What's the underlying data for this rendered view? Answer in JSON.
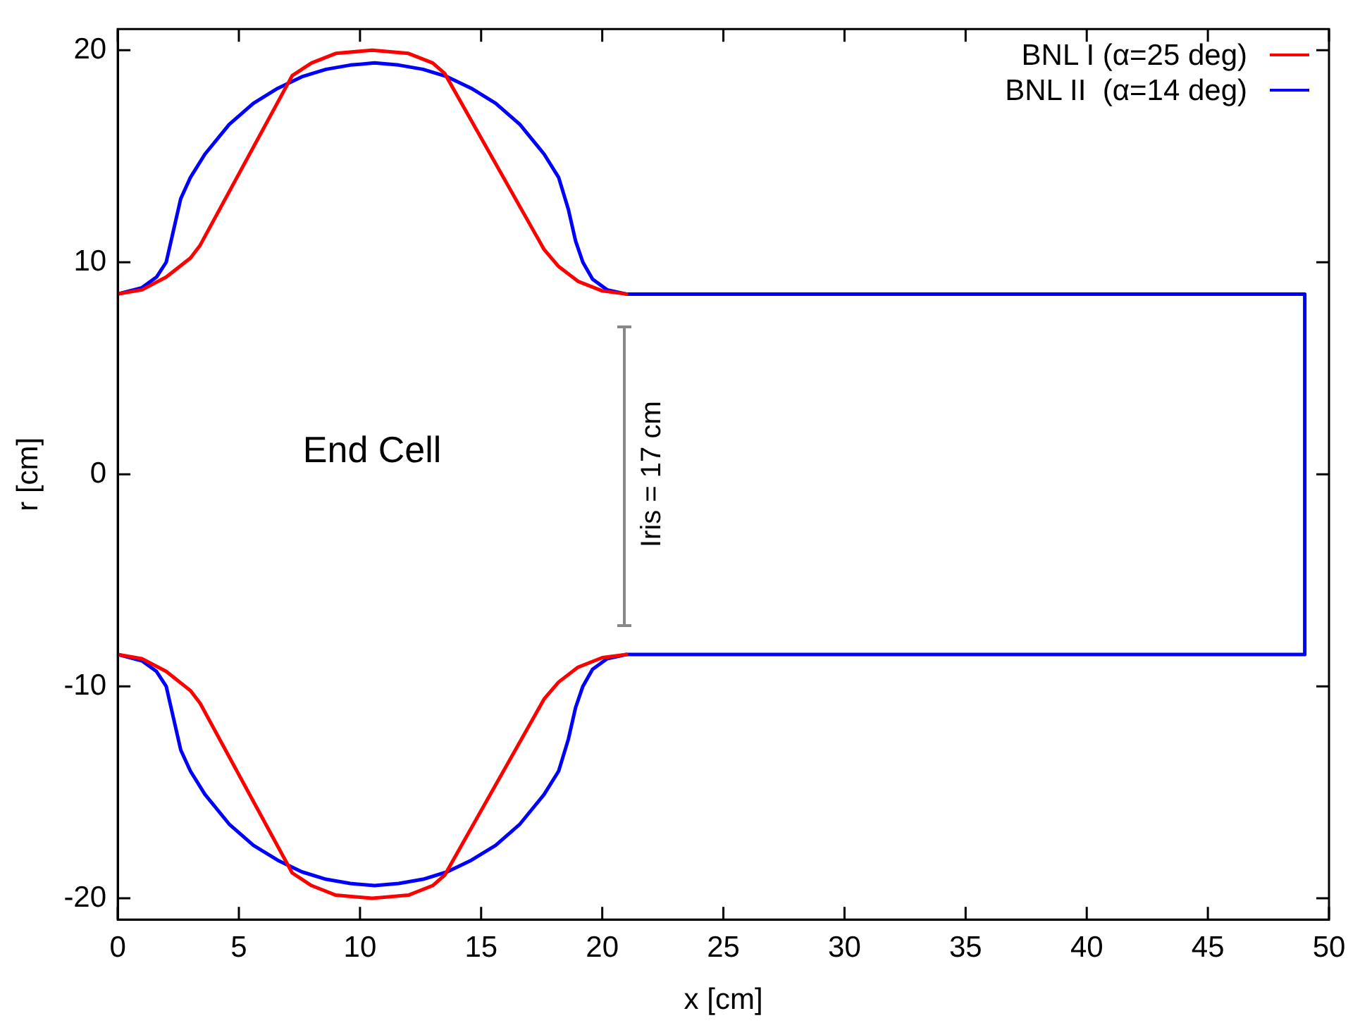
{
  "chart_data": {
    "type": "line",
    "xlabel": "x [cm]",
    "ylabel": "r [cm]",
    "xlim": [
      0,
      50
    ],
    "ylim": [
      -21,
      21
    ],
    "xticks": [
      0,
      5,
      10,
      15,
      20,
      25,
      30,
      35,
      40,
      45,
      50
    ],
    "yticks": [
      -20,
      -10,
      0,
      10,
      20
    ],
    "grid": false,
    "legend": "top right",
    "marker": "none",
    "line_style": "solid",
    "annotations": [
      "End Cell",
      "Iris = 17 cm"
    ],
    "series": [
      {
        "name": "BNL I (α=25 deg)",
        "color": "#ff0000",
        "x": [
          0,
          1,
          2,
          3,
          3.4,
          7.2,
          8,
          9,
          10.5,
          12,
          13,
          13.5,
          17.6,
          18.2,
          19,
          20,
          21,
          null,
          0,
          1,
          2,
          3,
          3.4,
          7.2,
          8,
          9,
          10.5,
          12,
          13,
          13.5,
          17.6,
          18.2,
          19,
          20,
          21
        ],
        "values": [
          8.5,
          8.7,
          9.3,
          10.2,
          10.8,
          18.8,
          19.4,
          19.85,
          20,
          19.85,
          19.4,
          18.9,
          10.6,
          9.8,
          9.1,
          8.65,
          8.5,
          null,
          -8.5,
          -8.7,
          -9.3,
          -10.2,
          -10.8,
          -18.8,
          -19.4,
          -19.85,
          -20,
          -19.85,
          -19.4,
          -18.9,
          -10.6,
          -9.8,
          -9.1,
          -8.65,
          -8.5
        ]
      },
      {
        "name": "BNL II  (α=14 deg)",
        "color": "#0000ff",
        "x": [
          0,
          1,
          1.6,
          2,
          2.3,
          2.6,
          3,
          3.6,
          4.6,
          5.6,
          6.6,
          7.6,
          8.6,
          9.6,
          10.6,
          11.6,
          12.6,
          13.6,
          14.6,
          15.6,
          16.6,
          17.6,
          18.2,
          18.6,
          18.9,
          19.2,
          19.6,
          20.2,
          21,
          49,
          49,
          21,
          20.2,
          19.6,
          19.2,
          18.9,
          18.6,
          18.2,
          17.6,
          16.6,
          15.6,
          14.6,
          13.6,
          12.6,
          11.6,
          10.6,
          9.6,
          8.6,
          7.6,
          6.6,
          5.6,
          4.6,
          3.6,
          3,
          2.6,
          2.3,
          2,
          1.6,
          1,
          0
        ],
        "values": [
          -8.5,
          -8.8,
          -9.3,
          -10,
          -11.5,
          -13,
          -14,
          -15.1,
          -16.5,
          -17.5,
          -18.2,
          -18.75,
          -19.1,
          -19.3,
          -19.4,
          -19.3,
          -19.1,
          -18.75,
          -18.2,
          -17.5,
          -16.5,
          -15.1,
          -14,
          -12.5,
          -11,
          -10,
          -9.2,
          -8.7,
          -8.5,
          -8.5,
          8.5,
          8.5,
          8.7,
          9.2,
          10,
          11,
          12.5,
          14,
          15.1,
          16.5,
          17.5,
          18.2,
          18.75,
          19.1,
          19.3,
          19.4,
          19.3,
          19.1,
          18.75,
          18.2,
          17.5,
          16.5,
          15.1,
          14,
          13,
          11.5,
          10,
          9.3,
          8.8,
          8.5
        ]
      }
    ]
  }
}
